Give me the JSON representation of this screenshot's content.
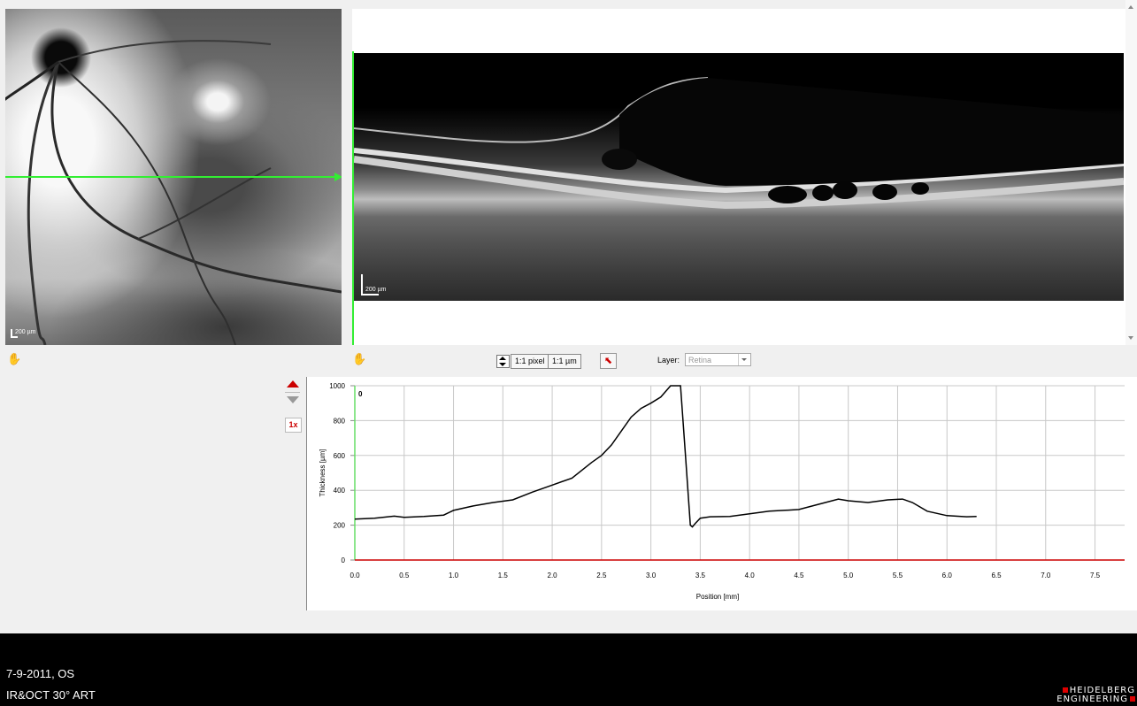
{
  "fundus": {
    "scale_label": "200 µm"
  },
  "oct": {
    "scale_label": "200 µm"
  },
  "toolbar": {
    "btn_pixel": "1:1 pixel",
    "btn_um": "1:1 µm",
    "layer_label": "Layer:",
    "layer_value": "Retina",
    "zoom_level": "1x"
  },
  "chart_data": {
    "type": "line",
    "xlabel": "Position [mm]",
    "ylabel": "Thickness [µm]",
    "xlim": [
      0,
      7.8
    ],
    "ylim": [
      0,
      1000
    ],
    "x_ticks": [
      "0.0",
      "0.5",
      "1.0",
      "1.5",
      "2.0",
      "2.5",
      "3.0",
      "3.5",
      "4.0",
      "4.5",
      "5.0",
      "5.5",
      "6.0",
      "6.5",
      "7.0",
      "7.5"
    ],
    "y_ticks": [
      "0",
      "200",
      "400",
      "600",
      "800",
      "1000"
    ],
    "annotation": "0",
    "grid": true,
    "colors": {
      "line": "#000000",
      "baseline": "#cc0000",
      "y_axis": "#66dd66",
      "grid": "#c8c8c8"
    },
    "series": [
      {
        "x": [
          0,
          0.2,
          0.4,
          0.5,
          0.7,
          0.9,
          1.0,
          1.2,
          1.4,
          1.6,
          1.8,
          2.0,
          2.2,
          2.4,
          2.5,
          2.6,
          2.7,
          2.8,
          2.9,
          3.0,
          3.1,
          3.2,
          3.3,
          3.35,
          3.4,
          3.42,
          3.45,
          3.5,
          3.6,
          3.8,
          4.0,
          4.2,
          4.5,
          4.7,
          4.9,
          5.0,
          5.2,
          5.4,
          5.55,
          5.65,
          5.8,
          6.0,
          6.2,
          6.3
        ],
        "y": [
          235,
          240,
          252,
          245,
          250,
          258,
          285,
          310,
          330,
          345,
          390,
          430,
          470,
          560,
          600,
          660,
          740,
          820,
          870,
          900,
          935,
          1000,
          1000,
          600,
          200,
          190,
          210,
          240,
          248,
          250,
          265,
          280,
          290,
          320,
          350,
          340,
          330,
          345,
          350,
          330,
          280,
          255,
          248,
          250
        ]
      },
      {
        "x": [
          0,
          7.8
        ],
        "y": [
          0,
          0
        ]
      }
    ]
  },
  "footer": {
    "date_eye": "7-9-2011, OS",
    "mode": "IR&OCT 30° ART",
    "brand_line1": "HEIDELBERG",
    "brand_line2": "ENGINEERING"
  }
}
